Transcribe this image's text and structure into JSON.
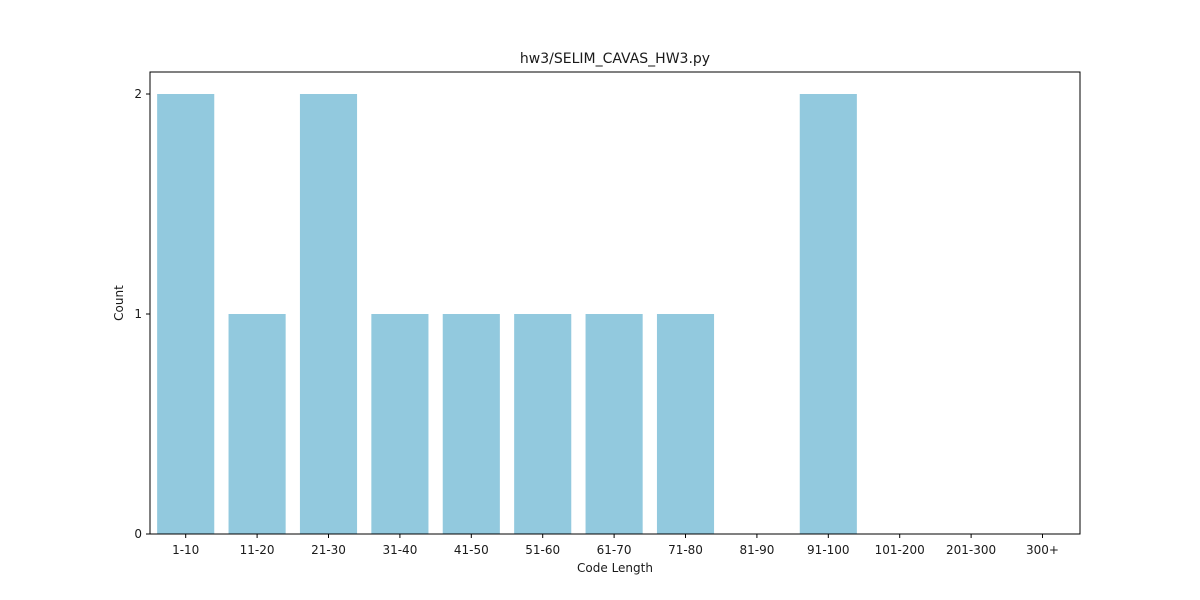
{
  "chart_data": {
    "type": "bar",
    "title": "hw3/SELIM_CAVAS_HW3.py",
    "xlabel": "Code Length",
    "ylabel": "Count",
    "categories": [
      "1-10",
      "11-20",
      "21-30",
      "31-40",
      "41-50",
      "51-60",
      "61-70",
      "71-80",
      "81-90",
      "91-100",
      "101-200",
      "201-300",
      "300+"
    ],
    "values": [
      2,
      1,
      2,
      1,
      1,
      1,
      1,
      1,
      0,
      2,
      0,
      0,
      0
    ],
    "ylim": [
      0,
      2.1
    ],
    "yticks": [
      0,
      1,
      2
    ],
    "bar_color": "#92c9de",
    "grid": false,
    "legend": "none"
  }
}
